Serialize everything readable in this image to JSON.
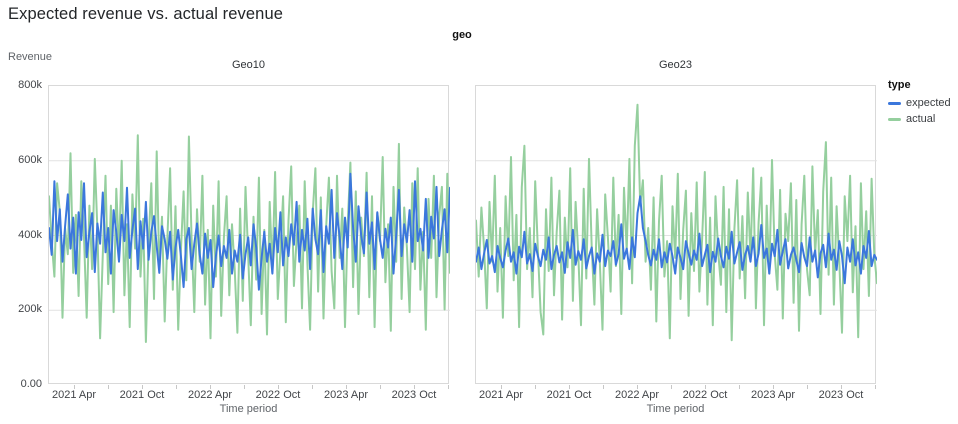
{
  "page": {
    "title": "Expected revenue vs. actual revenue"
  },
  "facet_header_label": "geo",
  "legend": {
    "title": "type",
    "items": [
      {
        "label": "expected",
        "color": "#3b77dc"
      },
      {
        "label": "actual",
        "color": "#95cf9e"
      }
    ]
  },
  "axes": {
    "y": {
      "title": "Revenue",
      "max": 800,
      "ticks": [
        {
          "label": "800k",
          "value": 800
        },
        {
          "label": "600k",
          "value": 600
        },
        {
          "label": "400k",
          "value": 400
        },
        {
          "label": "200k",
          "value": 200
        },
        {
          "label": "0.00",
          "value": 0
        }
      ]
    },
    "x": {
      "title": "Time period",
      "major_tick_labels": [
        "2021 Apr",
        "2021 Oct",
        "2022 Apr",
        "2022 Oct",
        "2023 Apr",
        "2023 Oct"
      ]
    }
  },
  "chart_data": {
    "type": "line",
    "title": "Expected revenue vs. actual revenue",
    "facet_dimension": "geo",
    "x_domain": [
      "2021 Jan",
      "2023 Dec"
    ],
    "x_granularity": "weekly",
    "values_unit": "revenue in thousands (k)",
    "ylim": [
      0,
      800
    ],
    "grid": "horizontal",
    "legend_position": "right",
    "facets": [
      {
        "title": "Geo10",
        "series": [
          {
            "name": "expected",
            "color": "#3b77dc",
            "values": [
              420,
              348,
              545,
              385,
              470,
              330,
              425,
              510,
              365,
              448,
              298,
              462,
              388,
              540,
              342,
              410,
              460,
              302,
              432,
              378,
              515,
              355,
              420,
              298,
              468,
              410,
              330,
              455,
              385,
              528,
              340,
              415,
              472,
              310,
              438,
              365,
              490,
              335,
              410,
              452,
              372,
              300,
              425,
              390,
              338,
              410,
              282,
              368,
              415,
              345,
              262,
              390,
              420,
              310,
              378,
              432,
              350,
              298,
              405,
              340,
              388,
              262,
              345,
              400,
              318,
              372,
              340,
              415,
              298,
              360,
              330,
              402,
              285,
              350,
              395,
              320,
              430,
              368,
              255,
              340,
              410,
              330,
              378,
              298,
              420,
              355,
              462,
              320,
              395,
              345,
              430,
              375,
              490,
              330,
              415,
              360,
              445,
              310,
              472,
              390,
              350,
              468,
              302,
              425,
              378,
              522,
              340,
              460,
              395,
              310,
              448,
              368,
              565,
              420,
              330,
              478,
              400,
              352,
              515,
              378,
              435,
              310,
              462,
              390,
              340,
              418,
              368,
              448,
              298,
              402,
              522,
              345,
              430,
              382,
              468,
              330,
              545,
              385,
              418,
              360,
              498,
              340,
              450,
              392,
              530,
              345,
              415,
              470,
              355,
              528
            ]
          },
          {
            "name": "actual",
            "color": "#95cf9e",
            "values": [
              505,
              385,
              290,
              540,
              465,
              180,
              420,
              350,
              620,
              300,
              455,
              238,
              545,
              395,
              180,
              480,
              310,
              605,
              415,
              125,
              350,
              560,
              270,
              480,
              195,
              525,
              350,
              600,
              240,
              430,
              155,
              510,
              365,
              668,
              290,
              445,
              115,
              380,
              540,
              230,
              625,
              310,
              450,
              170,
              395,
              580,
              255,
              478,
              148,
              360,
              518,
              280,
              665,
              390,
              195,
              470,
              330,
              560,
              215,
              415,
              125,
              480,
              290,
              545,
              185,
              395,
              505,
              240,
              430,
              310,
              140,
              472,
              225,
              530,
              345,
              160,
              450,
              282,
              555,
              190,
              415,
              135,
              490,
              300,
              570,
              230,
              360,
              505,
              168,
              440,
              585,
              265,
              390,
              480,
              205,
              545,
              325,
              148,
              460,
              580,
              250,
              502,
              178,
              425,
              555,
              305,
              205,
              560,
              340,
              472,
              155,
              430,
              595,
              262,
              518,
              190,
              448,
              345,
              568,
              235,
              505,
              155,
              460,
              385,
              610,
              275,
              430,
              145,
              530,
              330,
              645,
              230,
              475,
              368,
              195,
              540,
              310,
              580,
              255,
              410,
              148,
              498,
              340,
              560,
              235,
              452,
              530,
              202,
              565,
              300
            ]
          }
        ]
      },
      {
        "title": "Geo23",
        "series": [
          {
            "name": "expected",
            "color": "#3b77dc",
            "values": [
              330,
              368,
              310,
              352,
              388,
              325,
              345,
              302,
              372,
              340,
              315,
              360,
              392,
              330,
              355,
              298,
              370,
              342,
              410,
              325,
              350,
              305,
              378,
              345,
              318,
              362,
              335,
              395,
              310,
              348,
              372,
              328,
              355,
              300,
              382,
              340,
              415,
              322,
              358,
              335,
              390,
              312,
              345,
              368,
              298,
              352,
              330,
              402,
              318,
              360,
              345,
              385,
              322,
              350,
              430,
              338,
              365,
              310,
              395,
              342,
              460,
              505,
              420,
              385,
              348,
              320,
              362,
              335,
              390,
              315,
              355,
              328,
              378,
              345,
              298,
              368,
              340,
              310,
              385,
              352,
              322,
              360,
              335,
              405,
              318,
              348,
              375,
              302,
              356,
              330,
              392,
              345,
              315,
              370,
              338,
              410,
              325,
              355,
              382,
              308,
              348,
              372,
              330,
              395,
              318,
              352,
              428,
              340,
              365,
              298,
              378,
              345,
              415,
              322,
              358,
              390,
              312,
              348,
              368,
              335,
              302,
              380,
              342,
              318,
              395,
              330,
              360,
              288,
              352,
              375,
              315,
              405,
              335,
              362,
              308,
              385,
              345,
              272,
              368,
              330,
              390,
              320,
              355,
              298,
              372,
              340,
              412,
              318,
              348,
              335
            ]
          },
          {
            "name": "actual",
            "color": "#95cf9e",
            "values": [
              440,
              290,
              475,
              365,
              205,
              490,
              330,
              560,
              250,
              420,
              180,
              505,
              345,
              610,
              280,
              455,
              155,
              530,
              640,
              310,
              420,
              235,
              545,
              360,
              195,
              135,
              470,
              305,
              555,
              240,
              410,
              520,
              175,
              448,
              315,
              580,
              225,
              490,
              348,
              160,
              525,
              285,
              605,
              370,
              215,
              470,
              330,
              148,
              510,
              395,
              250,
              555,
              318,
              455,
              190,
              528,
              360,
              605,
              272,
              640,
              750,
              480,
              548,
              330,
              420,
              255,
              502,
              170,
              438,
              560,
              290,
              385,
              125,
              478,
              340,
              565,
              230,
              415,
              520,
              185,
              460,
              305,
              542,
              250,
              390,
              570,
              215,
              448,
              160,
              505,
              355,
              268,
              530,
              195,
              470,
              120,
              418,
              548,
              285,
              452,
              232,
              515,
              340,
              580,
              205,
              435,
              555,
              160,
              480,
              298,
              602,
              350,
              255,
              522,
              178,
              458,
              385,
              540,
              220,
              495,
              145,
              430,
              560,
              310,
              240,
              585,
              352,
              468,
              190,
              518,
              650,
              295,
              555,
              215,
              478,
              330,
              140,
              505,
              385,
              560,
              248,
              425,
              128,
              540,
              310,
              465,
              238,
              552,
              348,
              272
            ]
          }
        ]
      }
    ]
  }
}
